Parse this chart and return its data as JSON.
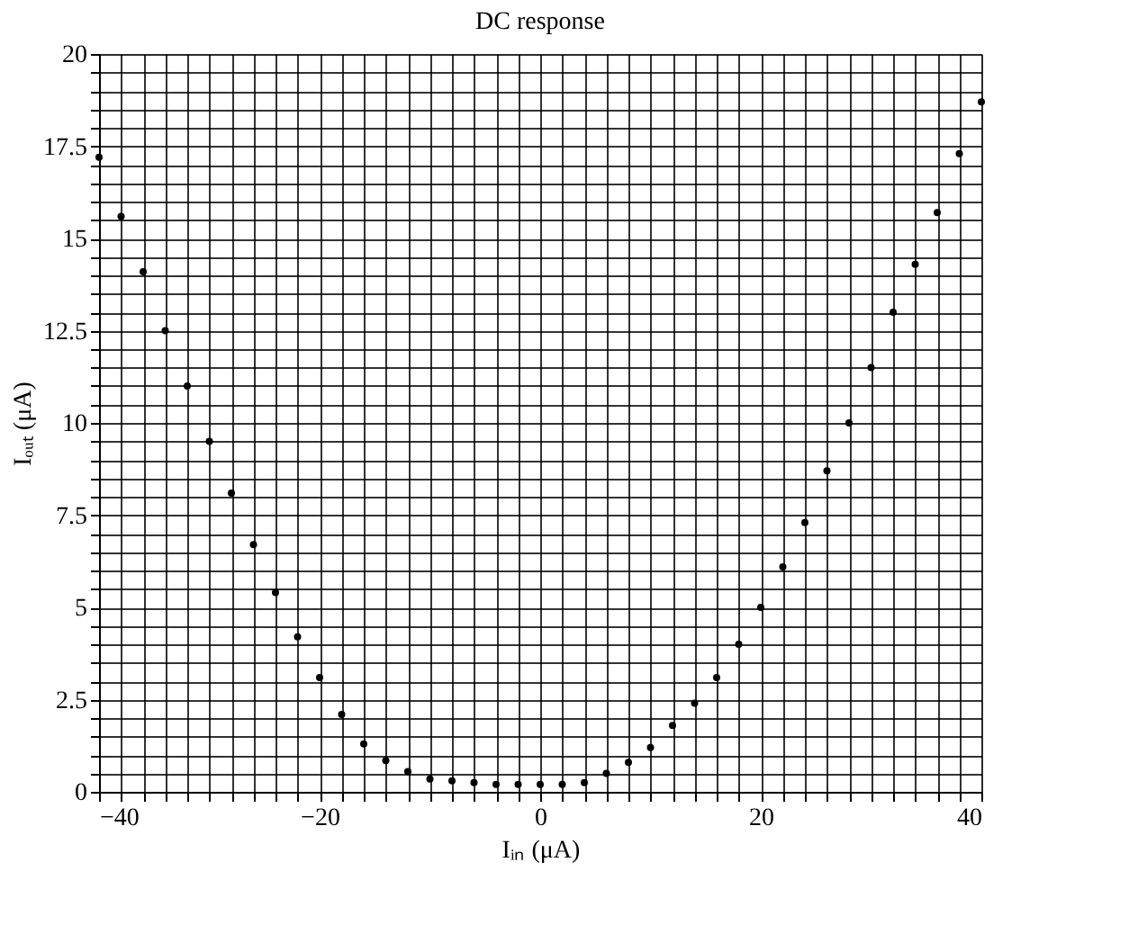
{
  "chart_data": {
    "type": "scatter",
    "title": "DC response",
    "xlabel": "Iᵢₙ (μA)",
    "ylabel": "Iₒᵤₜ (μA)",
    "marker": "circle",
    "grid": true,
    "xlim": [
      -40,
      40
    ],
    "ylim": [
      0,
      20
    ],
    "xticks": [
      {
        "value": -40,
        "label": "−40"
      },
      {
        "value": -38,
        "label": null
      },
      {
        "value": -36,
        "label": null
      },
      {
        "value": -34,
        "label": null
      },
      {
        "value": -32,
        "label": null
      },
      {
        "value": -30,
        "label": null
      },
      {
        "value": -28,
        "label": null
      },
      {
        "value": -26,
        "label": null
      },
      {
        "value": -24,
        "label": null
      },
      {
        "value": -22,
        "label": null
      },
      {
        "value": -20,
        "label": "−20"
      },
      {
        "value": -18,
        "label": null
      },
      {
        "value": -16,
        "label": null
      },
      {
        "value": -14,
        "label": null
      },
      {
        "value": -12,
        "label": null
      },
      {
        "value": -10,
        "label": null
      },
      {
        "value": -8,
        "label": null
      },
      {
        "value": -6,
        "label": null
      },
      {
        "value": -4,
        "label": null
      },
      {
        "value": -2,
        "label": null
      },
      0,
      {
        "value": 2,
        "label": null
      },
      {
        "value": 4,
        "label": null
      },
      {
        "value": 6,
        "label": null
      },
      {
        "value": 8,
        "label": null
      },
      {
        "value": 10,
        "label": null
      },
      {
        "value": 12,
        "label": null
      },
      {
        "value": 14,
        "label": null
      },
      {
        "value": 16,
        "label": null
      },
      {
        "value": 18,
        "label": null
      },
      20,
      {
        "value": 22,
        "label": null
      },
      {
        "value": 24,
        "label": null
      },
      {
        "value": 26,
        "label": null
      },
      {
        "value": 28,
        "label": null
      },
      {
        "value": 30,
        "label": null
      },
      {
        "value": 32,
        "label": null
      },
      {
        "value": 34,
        "label": null
      },
      {
        "value": 36,
        "label": null
      },
      {
        "value": 38,
        "label": null
      },
      40
    ],
    "yticks": [
      0,
      {
        "value": 0.5,
        "label": null
      },
      {
        "value": 1,
        "label": null
      },
      {
        "value": 1.5,
        "label": null
      },
      {
        "value": 2,
        "label": null
      },
      2.5,
      {
        "value": 3,
        "label": null
      },
      {
        "value": 3.5,
        "label": null
      },
      {
        "value": 4,
        "label": null
      },
      {
        "value": 4.5,
        "label": null
      },
      5,
      {
        "value": 5.5,
        "label": null
      },
      {
        "value": 6,
        "label": null
      },
      {
        "value": 6.5,
        "label": null
      },
      {
        "value": 7,
        "label": null
      },
      7.5,
      {
        "value": 8,
        "label": null
      },
      {
        "value": 8.5,
        "label": null
      },
      {
        "value": 9,
        "label": null
      },
      {
        "value": 9.5,
        "label": null
      },
      10,
      {
        "value": 10.5,
        "label": null
      },
      {
        "value": 11,
        "label": null
      },
      {
        "value": 11.5,
        "label": null
      },
      {
        "value": 12,
        "label": null
      },
      12.5,
      {
        "value": 13,
        "label": null
      },
      {
        "value": 13.5,
        "label": null
      },
      {
        "value": 14,
        "label": null
      },
      {
        "value": 14.5,
        "label": null
      },
      15,
      {
        "value": 15.5,
        "label": null
      },
      {
        "value": 16,
        "label": null
      },
      {
        "value": 16.5,
        "label": null
      },
      {
        "value": 17,
        "label": null
      },
      17.5,
      {
        "value": 18,
        "label": null
      },
      {
        "value": 18.5,
        "label": null
      },
      {
        "value": 19,
        "label": null
      },
      {
        "value": 19.5,
        "label": null
      },
      20
    ],
    "x": [
      -40,
      -38,
      -36,
      -34,
      -32,
      -30,
      -28,
      -26,
      -24,
      -22,
      -20,
      -18,
      -16,
      -14,
      -12,
      -10,
      -8,
      -6,
      -4,
      -2,
      0,
      2,
      4,
      6,
      8,
      10,
      12,
      14,
      16,
      18,
      20,
      22,
      24,
      26,
      28,
      30,
      32,
      34,
      36,
      38,
      40
    ],
    "series": [
      {
        "color": "#000000",
        "values": [
          17.2,
          15.6,
          14.1,
          12.5,
          11.0,
          9.5,
          8.1,
          6.7,
          5.4,
          4.2,
          3.1,
          2.1,
          1.3,
          0.85,
          0.55,
          0.35,
          0.3,
          0.25,
          0.2,
          0.2,
          0.2,
          0.2,
          0.25,
          0.5,
          0.8,
          1.2,
          1.8,
          2.4,
          3.1,
          4.0,
          5.0,
          6.1,
          7.3,
          8.7,
          10.0,
          11.5,
          13.0,
          14.3,
          15.7,
          17.3,
          18.7
        ]
      }
    ]
  }
}
